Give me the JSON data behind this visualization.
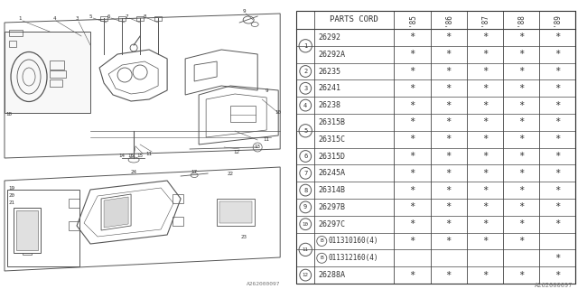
{
  "bg_color": "#ffffff",
  "title": "PARTS CORD",
  "year_cols": [
    "'85",
    "'86",
    "'87",
    "'88",
    "'89"
  ],
  "rows": [
    {
      "num": "1",
      "sub": false,
      "bcirc": false,
      "code": "26292",
      "stars": [
        1,
        1,
        1,
        1,
        1
      ]
    },
    {
      "num": null,
      "sub": false,
      "bcirc": false,
      "code": "26292A",
      "stars": [
        1,
        1,
        1,
        1,
        1
      ]
    },
    {
      "num": "2",
      "sub": false,
      "bcirc": false,
      "code": "26235",
      "stars": [
        1,
        1,
        1,
        1,
        1
      ]
    },
    {
      "num": "3",
      "sub": false,
      "bcirc": false,
      "code": "26241",
      "stars": [
        1,
        1,
        1,
        1,
        1
      ]
    },
    {
      "num": "4",
      "sub": false,
      "bcirc": false,
      "code": "26238",
      "stars": [
        1,
        1,
        1,
        1,
        1
      ]
    },
    {
      "num": "5",
      "sub": false,
      "bcirc": false,
      "code": "26315B",
      "stars": [
        1,
        1,
        1,
        1,
        1
      ]
    },
    {
      "num": null,
      "sub": false,
      "bcirc": false,
      "code": "26315C",
      "stars": [
        1,
        1,
        1,
        1,
        1
      ]
    },
    {
      "num": "6",
      "sub": false,
      "bcirc": false,
      "code": "26315D",
      "stars": [
        1,
        1,
        1,
        1,
        1
      ]
    },
    {
      "num": "7",
      "sub": false,
      "bcirc": false,
      "code": "26245A",
      "stars": [
        1,
        1,
        1,
        1,
        1
      ]
    },
    {
      "num": "8",
      "sub": false,
      "bcirc": false,
      "code": "26314B",
      "stars": [
        1,
        1,
        1,
        1,
        1
      ]
    },
    {
      "num": "9",
      "sub": false,
      "bcirc": false,
      "code": "26297B",
      "stars": [
        1,
        1,
        1,
        1,
        1
      ]
    },
    {
      "num": "10",
      "sub": false,
      "bcirc": false,
      "code": "26297C",
      "stars": [
        1,
        1,
        1,
        1,
        1
      ]
    },
    {
      "num": "11",
      "sub": true,
      "bcirc": true,
      "code": "011310160(4)",
      "stars": [
        1,
        1,
        1,
        1,
        0
      ]
    },
    {
      "num": null,
      "sub": false,
      "bcirc": true,
      "code": "011312160(4)",
      "stars": [
        0,
        0,
        0,
        0,
        1
      ]
    },
    {
      "num": "12",
      "sub": false,
      "bcirc": false,
      "code": "26288A",
      "stars": [
        1,
        1,
        1,
        1,
        1
      ]
    }
  ],
  "watermark": "A262000097",
  "line_color": "#555555",
  "text_color": "#333333"
}
